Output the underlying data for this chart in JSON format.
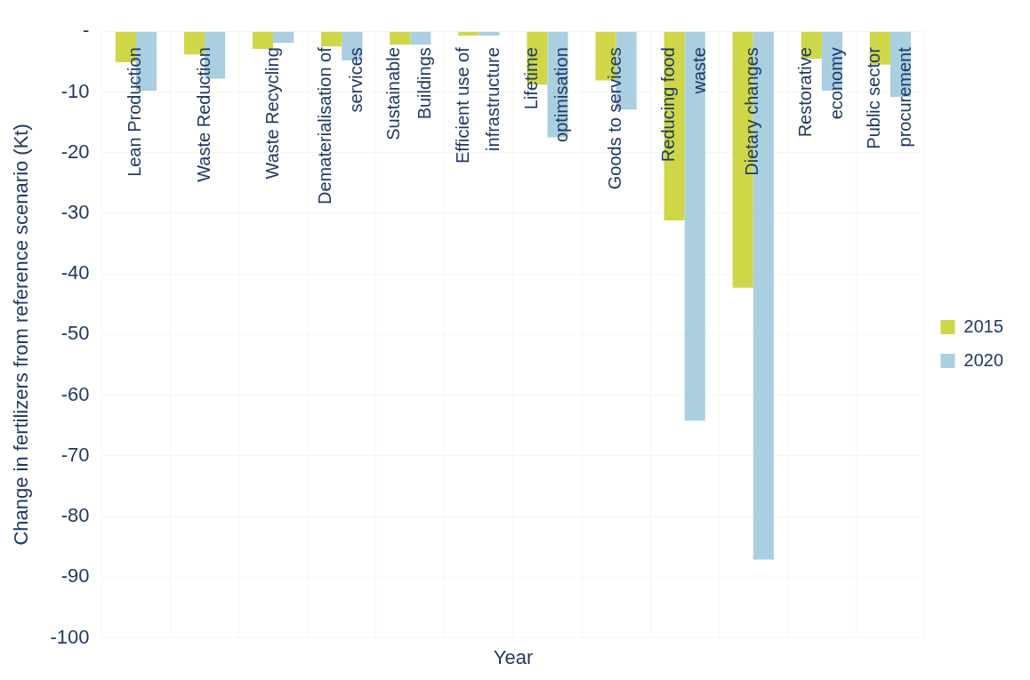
{
  "chart_data": {
    "type": "bar",
    "xlabel": "Year",
    "ylabel": "Change in fertilizers from reference scenario (Kt)",
    "categories": [
      "Lean Production",
      "Waste Reduction",
      "Waste Recycling",
      "Dematerialisation of services",
      "Sustainable Buildings",
      "Efficient use of infrastructure",
      "Lifetime optimisation",
      "Goods to services",
      "Reducing food waste",
      "Dietary changes",
      "Restorative economy",
      "Public sector procurement"
    ],
    "series": [
      {
        "name": "2015",
        "color": "#cfd748",
        "values": [
          -5.1,
          -3.8,
          -2.9,
          -2.5,
          -2.2,
          -0.7,
          -8.8,
          -8.1,
          -31.2,
          -42.3,
          -4.5,
          -5.5
        ]
      },
      {
        "name": "2020",
        "color": "#a9cfe1",
        "values": [
          -9.8,
          -7.8,
          -1.9,
          -4.8,
          -2.2,
          -0.7,
          -17.5,
          -12.9,
          -64.2,
          -87.1,
          -9.8,
          -10.8
        ]
      }
    ],
    "ylim": [
      -100,
      0
    ],
    "yticks": [
      {
        "value": 0,
        "label": "-"
      },
      -10,
      -20,
      -30,
      -40,
      -50,
      -60,
      -70,
      -80,
      -90,
      -100
    ],
    "grid": true,
    "legend": "right"
  }
}
